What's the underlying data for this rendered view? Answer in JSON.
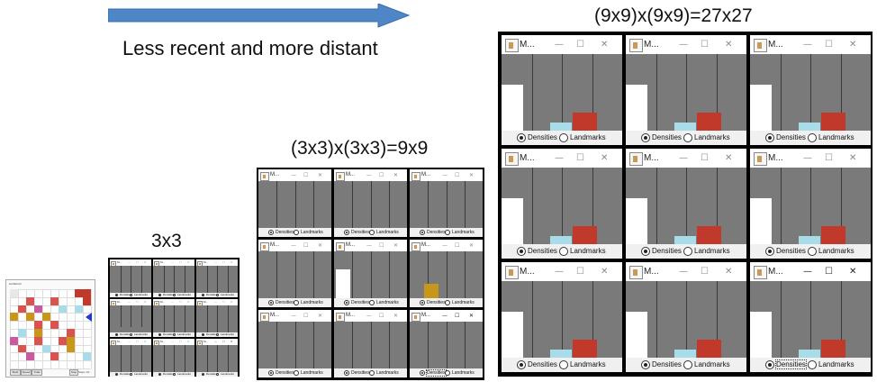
{
  "header_text": "Less recent and more distant",
  "labels": {
    "level1": "3x3",
    "level2": "(3x3)x(3x3)=9x9",
    "level3": "(9x9)x(9x9)=27x27"
  },
  "window": {
    "title": "M...",
    "min_icon": "—",
    "max_icon": "☐",
    "close_icon": "✕",
    "radio_densities": "Densities",
    "radio_landmarks": "Landmarks",
    "selected": "Densities"
  },
  "small_window_title": "M...",
  "colors": {
    "arrow": "#4f86c6",
    "plot_bg": "#7a7a7a",
    "white_bar": "#ffffff",
    "lightblue_bar": "#a8dce8",
    "red_bar": "#c0392b",
    "gold_bar": "#c8961a",
    "group_border": "#000000"
  },
  "grid_app": {
    "title": "GridWorld",
    "controls": [
      "Build",
      "Speed",
      "Trials"
    ],
    "status": "Stop",
    "counter": "Steps 1/1"
  }
}
